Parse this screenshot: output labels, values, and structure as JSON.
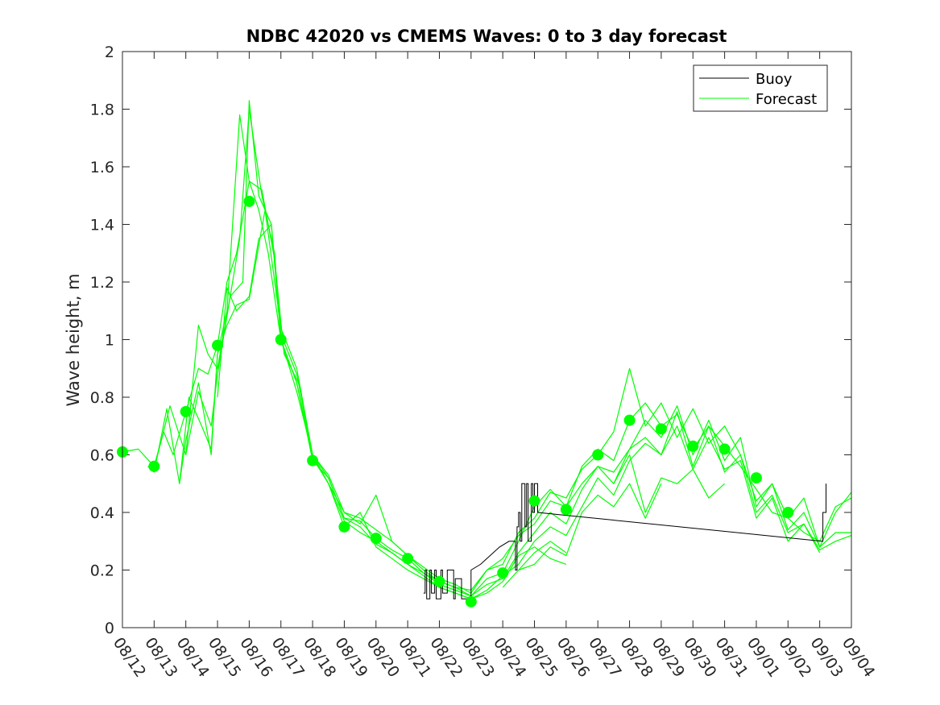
{
  "chart_data": {
    "type": "line",
    "title": "NDBC 42020 vs CMEMS Waves: 0 to 3 day forecast",
    "xlabel": "",
    "ylabel": "Wave height, m",
    "x_units": "days after 08/12",
    "xlim": [
      0,
      23
    ],
    "ylim": [
      0,
      2
    ],
    "yticks": [
      0,
      0.2,
      0.4,
      0.6,
      0.8,
      1,
      1.2,
      1.4,
      1.6,
      1.8,
      2
    ],
    "ytick_labels": [
      "0",
      "0.2",
      "0.4",
      "0.6",
      "0.8",
      "1",
      "1.2",
      "1.4",
      "1.6",
      "1.8",
      "2"
    ],
    "xtick_labels": [
      "08/12",
      "08/13",
      "08/14",
      "08/15",
      "08/16",
      "08/17",
      "08/18",
      "08/19",
      "08/20",
      "08/21",
      "08/22",
      "08/23",
      "08/24",
      "08/25",
      "08/26",
      "08/27",
      "08/28",
      "08/29",
      "08/30",
      "08/31",
      "09/01",
      "09/02",
      "09/03",
      "09/04"
    ],
    "legend": {
      "placement": "top-right",
      "entries": [
        {
          "label": "Buoy",
          "color": "#000000"
        },
        {
          "label": "Forecast",
          "color": "#00ff00"
        }
      ]
    },
    "buoy": {
      "name": "Buoy",
      "color": "#000000",
      "x": [
        9.5,
        9.55,
        9.55,
        9.6,
        9.6,
        9.7,
        9.7,
        9.75,
        9.75,
        9.85,
        9.85,
        9.9,
        9.9,
        10.05,
        10.05,
        10.1,
        10.1,
        10.25,
        10.25,
        10.45,
        10.45,
        10.5,
        10.5,
        10.7,
        10.7,
        11.0,
        11.0,
        11.3,
        11.6,
        11.9,
        12.2,
        12.4,
        12.4,
        12.45,
        12.45,
        12.5,
        12.5,
        12.55,
        12.55,
        12.6,
        12.6,
        12.7,
        12.7,
        12.75,
        12.75,
        12.8,
        12.8,
        12.9,
        12.9,
        12.95,
        12.95,
        13.0,
        13.0,
        13.1,
        13.1,
        14.0,
        22.1,
        22.1,
        22.2,
        22.2
      ],
      "y": [
        0.12,
        0.12,
        0.2,
        0.2,
        0.1,
        0.1,
        0.2,
        0.2,
        0.12,
        0.12,
        0.2,
        0.2,
        0.1,
        0.1,
        0.2,
        0.2,
        0.12,
        0.12,
        0.2,
        0.2,
        0.1,
        0.1,
        0.17,
        0.17,
        0.1,
        0.1,
        0.2,
        0.22,
        0.25,
        0.28,
        0.3,
        0.3,
        0.2,
        0.2,
        0.35,
        0.35,
        0.4,
        0.4,
        0.3,
        0.3,
        0.5,
        0.5,
        0.35,
        0.35,
        0.5,
        0.5,
        0.3,
        0.3,
        0.5,
        0.5,
        0.4,
        0.4,
        0.5,
        0.5,
        0.4,
        0.39,
        0.3,
        0.4,
        0.4,
        0.5
      ]
    },
    "analysis_points": {
      "name": "Forecast",
      "color": "#00ff00",
      "x": [
        0,
        1,
        2,
        3,
        4,
        5,
        6,
        7,
        8,
        9,
        10,
        11,
        12,
        13,
        14,
        15,
        16,
        17,
        18,
        19,
        20,
        21
      ],
      "y": [
        0.61,
        0.56,
        0.75,
        0.98,
        1.48,
        1.0,
        0.58,
        0.35,
        0.31,
        0.24,
        0.16,
        0.09,
        0.19,
        0.44,
        0.41,
        0.6,
        0.72,
        0.69,
        0.63,
        0.62,
        0.52,
        0.4
      ]
    },
    "forecast_series": [
      {
        "x": [
          0,
          0.5,
          1,
          1.3,
          1.6,
          2,
          2.4,
          2.7,
          3,
          3.3,
          3.6,
          4,
          4.3,
          4.6,
          5,
          5.5,
          6,
          6.5,
          7,
          7.5,
          8,
          8.5,
          9,
          9.5,
          10,
          10.5,
          11,
          11.5,
          12,
          12.5,
          13,
          13.5,
          14,
          14.5,
          15,
          15.5,
          16,
          16.5,
          17,
          17.5,
          18,
          18.5,
          19,
          19.5,
          20,
          20.5,
          21,
          21.5,
          22,
          22.5,
          23
        ],
        "y": [
          0.61,
          0.62,
          0.56,
          0.68,
          0.6,
          0.75,
          0.9,
          0.88,
          0.98,
          1.2,
          1.3,
          1.55,
          1.45,
          1.3,
          1.0,
          0.85,
          0.58,
          0.52,
          0.38,
          0.37,
          0.31,
          0.27,
          0.24,
          0.19,
          0.16,
          0.14,
          0.11,
          0.17,
          0.19,
          0.3,
          0.42,
          0.48,
          0.42,
          0.56,
          0.62,
          0.58,
          0.72,
          0.78,
          0.7,
          0.74,
          0.62,
          0.7,
          0.63,
          0.56,
          0.48,
          0.4,
          0.38,
          0.33,
          0.3,
          0.42,
          0.45
        ]
      },
      {
        "x": [
          1,
          1.5,
          2,
          2.4,
          2.7,
          3,
          3.4,
          3.7,
          4,
          4.4,
          4.8,
          5,
          5.5,
          6,
          6.5,
          7,
          7.5,
          8,
          8.5,
          9,
          9.5,
          10,
          10.5,
          11,
          11.5,
          12,
          12.5,
          13,
          13.5,
          14,
          14.5,
          15,
          15.5,
          16,
          16.5,
          17,
          17.5,
          18,
          18.5,
          19,
          19.5,
          20,
          20.5,
          21,
          21.5,
          22,
          22.5,
          23
        ],
        "y": [
          0.55,
          0.77,
          0.6,
          1.05,
          0.95,
          0.9,
          1.15,
          1.35,
          1.8,
          1.5,
          1.3,
          1.0,
          0.85,
          0.6,
          0.5,
          0.4,
          0.38,
          0.34,
          0.3,
          0.25,
          0.21,
          0.17,
          0.15,
          0.12,
          0.2,
          0.22,
          0.33,
          0.38,
          0.47,
          0.45,
          0.55,
          0.6,
          0.68,
          0.9,
          0.7,
          0.78,
          0.66,
          0.76,
          0.64,
          0.7,
          0.6,
          0.44,
          0.5,
          0.38,
          0.45,
          0.28,
          0.4,
          0.47
        ]
      },
      {
        "x": [
          2,
          2.4,
          2.8,
          3,
          3.4,
          3.8,
          4,
          4.3,
          4.7,
          5,
          5.5,
          6,
          6.5,
          7,
          7.5,
          8,
          8.5,
          9,
          9.5,
          10,
          10.5,
          11,
          11.5,
          12,
          12.5,
          13,
          13.5,
          14,
          14.5,
          15,
          15.5,
          16,
          16.5,
          17,
          17.5,
          18,
          18.5,
          19,
          19.5,
          20,
          20.5,
          21,
          21.5,
          22,
          22.5,
          23
        ],
        "y": [
          0.6,
          0.82,
          0.7,
          0.88,
          1.15,
          1.2,
          1.83,
          1.5,
          1.4,
          1.0,
          0.82,
          0.6,
          0.52,
          0.38,
          0.35,
          0.29,
          0.26,
          0.22,
          0.19,
          0.15,
          0.13,
          0.11,
          0.15,
          0.17,
          0.26,
          0.33,
          0.4,
          0.36,
          0.48,
          0.56,
          0.5,
          0.62,
          0.72,
          0.66,
          0.77,
          0.6,
          0.72,
          0.58,
          0.66,
          0.42,
          0.5,
          0.34,
          0.4,
          0.28,
          0.33,
          0.33
        ]
      },
      {
        "x": [
          1.8,
          2.1,
          2.5,
          2.8,
          3,
          3.3,
          3.7,
          4,
          4.4,
          4.8,
          5.1,
          5.6,
          6,
          6.5,
          7,
          7.5,
          8,
          8.5,
          9,
          9.5,
          10,
          10.5,
          11,
          11.5,
          12,
          12.5,
          13,
          13.5,
          14,
          14.5,
          15,
          15.5,
          16,
          16.5,
          17,
          17.5,
          18,
          18.5,
          19,
          19.5,
          20,
          20.5,
          21,
          21.5,
          22,
          22.5,
          23
        ],
        "y": [
          0.5,
          0.8,
          0.7,
          0.62,
          0.95,
          1.1,
          1.78,
          1.55,
          1.52,
          1.28,
          0.95,
          0.84,
          0.59,
          0.5,
          0.37,
          0.33,
          0.3,
          0.26,
          0.22,
          0.18,
          0.14,
          0.12,
          0.1,
          0.13,
          0.18,
          0.22,
          0.3,
          0.35,
          0.32,
          0.42,
          0.52,
          0.46,
          0.58,
          0.64,
          0.6,
          0.75,
          0.56,
          0.7,
          0.54,
          0.6,
          0.4,
          0.46,
          0.33,
          0.36,
          0.27,
          0.3,
          0.32
        ]
      },
      {
        "x": [
          3,
          3.3,
          3.6,
          4,
          4.3,
          4.7,
          5,
          5.5,
          6,
          6.5,
          7,
          7.5,
          8,
          8.5,
          9,
          9.5,
          10,
          10.5,
          11,
          11.5,
          12,
          12.5,
          13,
          13.5,
          14,
          14.5,
          15,
          15.5,
          16,
          16.5,
          17,
          17.5,
          18,
          18.5,
          19,
          19.5,
          20,
          20.5,
          21,
          21.5,
          22
        ],
        "y": [
          0.8,
          1.18,
          1.1,
          1.15,
          1.35,
          1.4,
          1.02,
          0.88,
          0.6,
          0.53,
          0.4,
          0.36,
          0.46,
          0.3,
          0.25,
          0.2,
          0.16,
          0.14,
          0.13,
          0.2,
          0.24,
          0.32,
          0.36,
          0.44,
          0.42,
          0.5,
          0.56,
          0.54,
          0.62,
          0.66,
          0.6,
          0.7,
          0.55,
          0.66,
          0.55,
          0.58,
          0.38,
          0.45,
          0.3,
          0.36,
          0.26
        ]
      },
      {
        "x": [
          0.8,
          1,
          1.4,
          1.8,
          2,
          2.4,
          2.8,
          3,
          3.3,
          3.6,
          4,
          4.5,
          5,
          5.5,
          6,
          6.5,
          7,
          7.5,
          8,
          8.5,
          9,
          9.5,
          10,
          10.5,
          11,
          11.5,
          12,
          12.5,
          13,
          13.5,
          14
        ],
        "y": [
          0.56,
          0.54,
          0.76,
          0.5,
          0.65,
          0.85,
          0.6,
          0.95,
          1.05,
          1.12,
          1.14,
          1.45,
          1.04,
          0.9,
          0.6,
          0.5,
          0.35,
          0.4,
          0.28,
          0.24,
          0.2,
          0.17,
          0.14,
          0.12,
          0.1,
          0.12,
          0.16,
          0.25,
          0.28,
          0.24,
          0.22
        ]
      },
      {
        "x": [
          12,
          12.5,
          13,
          13.5,
          14,
          14.5,
          15,
          15.5,
          16,
          16.5,
          17
        ],
        "y": [
          0.14,
          0.2,
          0.22,
          0.28,
          0.25,
          0.4,
          0.46,
          0.42,
          0.5,
          0.38,
          0.5
        ]
      },
      {
        "x": [
          12.5,
          13,
          13.5,
          14
        ],
        "y": [
          0.2,
          0.26,
          0.3,
          0.26
        ]
      },
      {
        "x": [
          15.5,
          16,
          16.5,
          17,
          17.5,
          18,
          18.5,
          19
        ],
        "y": [
          0.5,
          0.6,
          0.4,
          0.52,
          0.5,
          0.55,
          0.45,
          0.5
        ]
      }
    ]
  }
}
